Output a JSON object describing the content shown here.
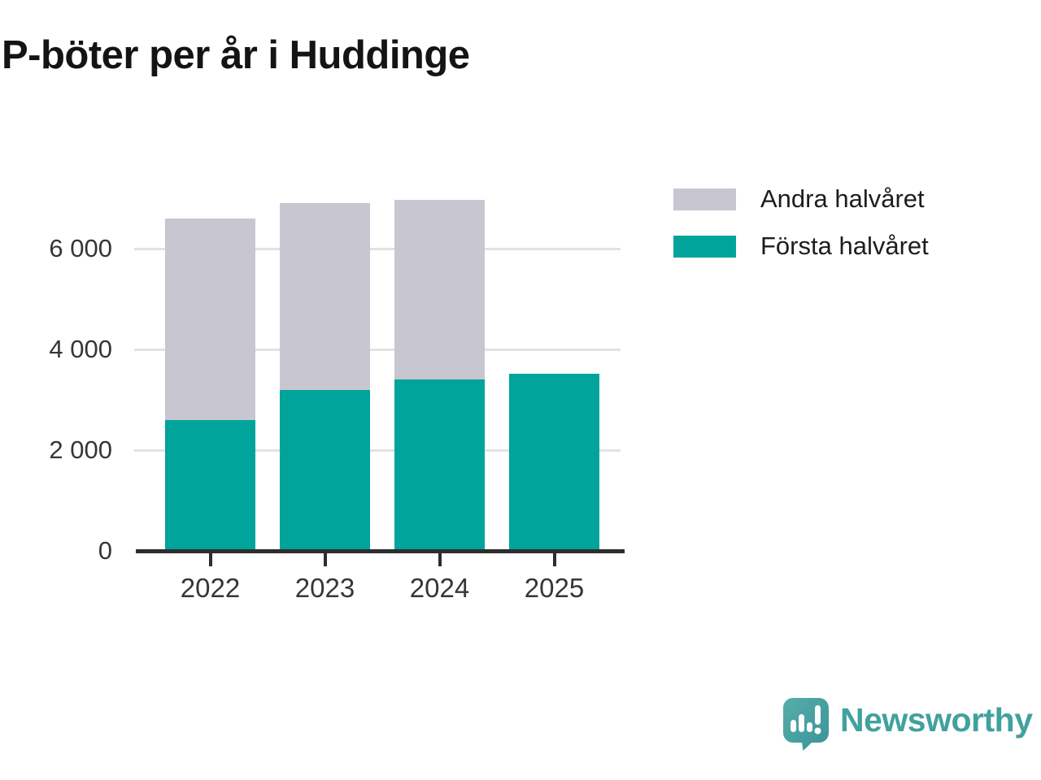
{
  "title": "P-böter per år i Huddinge",
  "colors": {
    "first_half": "#00a49b",
    "second_half": "#c8c6d0",
    "grid": "#e2e2e2",
    "axis": "#2d2d2d",
    "tick_text": "#363636",
    "title_text": "#141414",
    "brand_teal": "#41a19f"
  },
  "legend": {
    "items": [
      {
        "label": "Andra halvåret",
        "color": "#c8c6d0"
      },
      {
        "label": "Första halvåret",
        "color": "#00a49b"
      }
    ]
  },
  "chart_data": {
    "type": "bar",
    "stacked": true,
    "title": "P-böter per år i Huddinge",
    "categories": [
      "2022",
      "2023",
      "2024",
      "2025"
    ],
    "series": [
      {
        "name": "Första halvåret",
        "color": "#00a49b",
        "values": [
          2600,
          3200,
          3400,
          3520
        ]
      },
      {
        "name": "Andra halvåret",
        "color": "#c8c6d0",
        "values": [
          4000,
          3700,
          3570,
          0
        ]
      }
    ],
    "totals": [
      6600,
      6900,
      6970,
      3520
    ],
    "xlabel": "",
    "ylabel": "",
    "ylim": [
      0,
      7000
    ],
    "yticks": [
      0,
      2000,
      4000,
      6000
    ],
    "ytick_labels": [
      "0",
      "2 000",
      "4 000",
      "6 000"
    ],
    "grid": true,
    "legend_position": "top-right"
  },
  "footer": {
    "brand": "Newsworthy",
    "logo_icon": "newsworthy-speech-bubble-chart-icon"
  }
}
